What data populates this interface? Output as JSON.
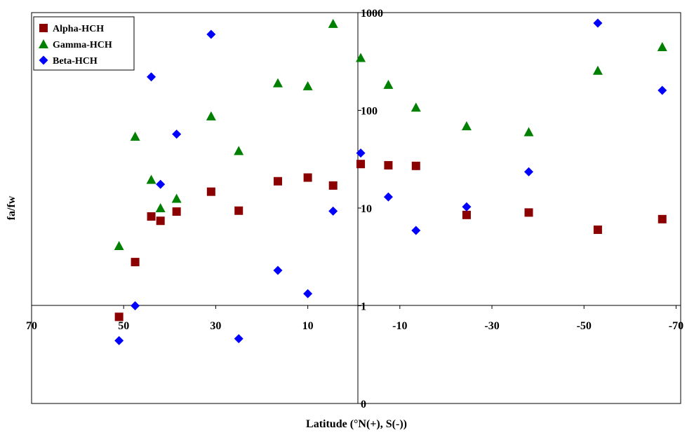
{
  "chart_data": {
    "type": "scatter",
    "title": "",
    "xlabel": "Latitude (°N(+), S(-))",
    "ylabel": "fa/fw",
    "x_reversed": true,
    "xlim": [
      70,
      -71
    ],
    "y_scale": "log",
    "ylim": [
      0.1,
      1000
    ],
    "x_ticks": [
      {
        "value": 70,
        "label": "70"
      },
      {
        "value": 50,
        "label": "50"
      },
      {
        "value": 30,
        "label": "30"
      },
      {
        "value": 10,
        "label": "10"
      },
      {
        "value": -10,
        "label": "-10"
      },
      {
        "value": -30,
        "label": "-30"
      },
      {
        "value": -50,
        "label": "-50"
      },
      {
        "value": -70,
        "label": "-70"
      }
    ],
    "y_tick_labels": [
      {
        "value": 0.1,
        "label": "0"
      },
      {
        "value": 1,
        "label": "1"
      },
      {
        "value": 10,
        "label": "10"
      },
      {
        "value": 100,
        "label": "100"
      },
      {
        "value": 1000,
        "label": "1000"
      }
    ],
    "legend_position": "top-left",
    "grid": false,
    "series": [
      {
        "name": "Alpha-HCH",
        "marker": "square",
        "color": "#8B0000",
        "points": [
          {
            "x": 51,
            "y": 0.77
          },
          {
            "x": 47.5,
            "y": 2.8
          },
          {
            "x": 44,
            "y": 8.2
          },
          {
            "x": 42,
            "y": 7.4
          },
          {
            "x": 38.5,
            "y": 9.2
          },
          {
            "x": 31,
            "y": 14.7
          },
          {
            "x": 25,
            "y": 9.4
          },
          {
            "x": 16.5,
            "y": 18.8
          },
          {
            "x": 10,
            "y": 20.5
          },
          {
            "x": 4.5,
            "y": 17.0
          },
          {
            "x": -1.5,
            "y": 28.2
          },
          {
            "x": -7.5,
            "y": 27.4
          },
          {
            "x": -13.5,
            "y": 27.0
          },
          {
            "x": -24.5,
            "y": 8.5
          },
          {
            "x": -38,
            "y": 9.0
          },
          {
            "x": -53,
            "y": 6.0
          },
          {
            "x": -67,
            "y": 7.7
          }
        ]
      },
      {
        "name": "Gamma-HCH",
        "marker": "triangle",
        "color": "#008000",
        "points": [
          {
            "x": 51,
            "y": 4.1
          },
          {
            "x": 47.5,
            "y": 54
          },
          {
            "x": 44,
            "y": 19.5
          },
          {
            "x": 42,
            "y": 10
          },
          {
            "x": 38.5,
            "y": 12.5
          },
          {
            "x": 31,
            "y": 87
          },
          {
            "x": 25,
            "y": 38.5
          },
          {
            "x": 16.5,
            "y": 190
          },
          {
            "x": 10,
            "y": 177
          },
          {
            "x": 4.5,
            "y": 770
          },
          {
            "x": -1.5,
            "y": 345
          },
          {
            "x": -7.5,
            "y": 183
          },
          {
            "x": -13.5,
            "y": 107
          },
          {
            "x": -24.5,
            "y": 69
          },
          {
            "x": -38,
            "y": 60
          },
          {
            "x": -53,
            "y": 255
          },
          {
            "x": -67,
            "y": 445
          }
        ]
      },
      {
        "name": "Beta-HCH",
        "marker": "diamond",
        "color": "#0000FF",
        "points": [
          {
            "x": 51,
            "y": 0.44
          },
          {
            "x": 47.5,
            "y": 1.0
          },
          {
            "x": 44,
            "y": 220
          },
          {
            "x": 42,
            "y": 17.5
          },
          {
            "x": 38.5,
            "y": 57
          },
          {
            "x": 31,
            "y": 600
          },
          {
            "x": 25,
            "y": 0.46
          },
          {
            "x": 16.5,
            "y": 2.3
          },
          {
            "x": 10,
            "y": 1.33
          },
          {
            "x": 4.5,
            "y": 9.3
          },
          {
            "x": -1.5,
            "y": 36.5
          },
          {
            "x": -7.5,
            "y": 13
          },
          {
            "x": -13.5,
            "y": 5.9
          },
          {
            "x": -24.5,
            "y": 10.3
          },
          {
            "x": -38,
            "y": 23.5
          },
          {
            "x": -53,
            "y": 780
          },
          {
            "x": -67,
            "y": 160
          }
        ]
      }
    ]
  }
}
